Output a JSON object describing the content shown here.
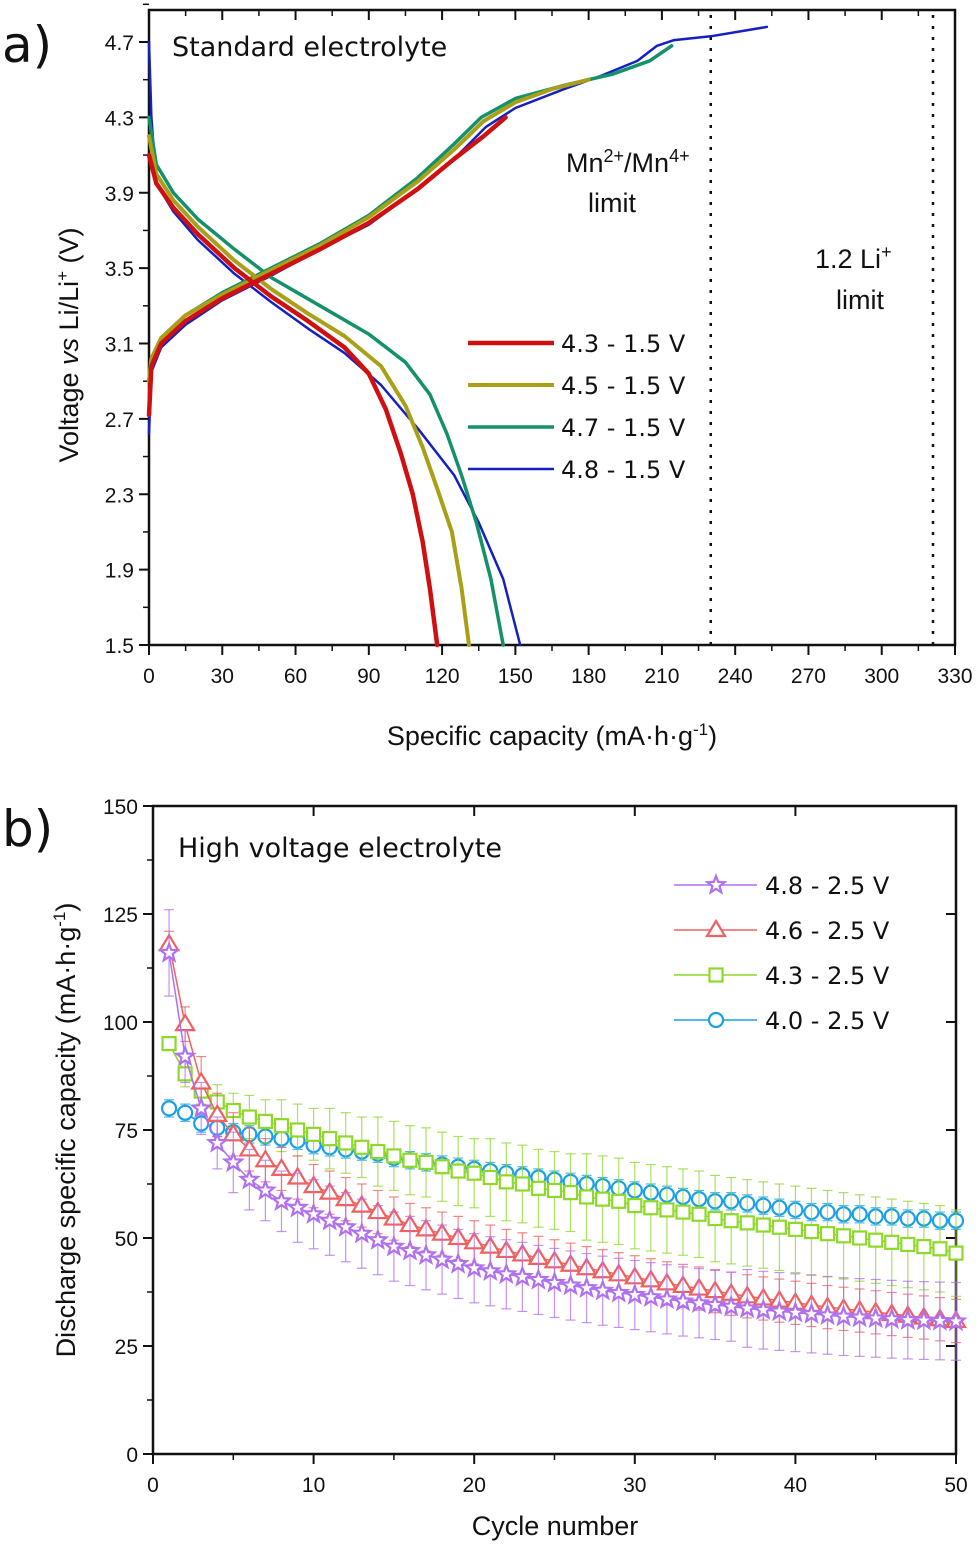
{
  "chart_data": [
    {
      "type": "line",
      "panel": "a)",
      "title": "Standard electrolyte",
      "xlabel": "Specific capacity (mA·h·g⁻¹)",
      "ylabel": "Voltage vs Li/Li⁺ (V)",
      "xlim": [
        0,
        330
      ],
      "ylim": [
        1.5,
        4.8
      ],
      "xticks": [
        0,
        30,
        60,
        90,
        120,
        150,
        180,
        210,
        240,
        270,
        300,
        330
      ],
      "yticks": [
        1.5,
        1.9,
        2.3,
        2.7,
        3.1,
        3.5,
        3.9,
        4.3,
        4.7
      ],
      "legend_position": "center-right",
      "annotations": [
        {
          "text": "Mn²⁺/Mn⁴⁺ limit",
          "x": 230
        },
        {
          "text": "1.2 Li⁺ limit",
          "x": 321
        }
      ],
      "series": [
        {
          "name": "4.3 - 1.5 V",
          "color": "#d01010",
          "charge": [
            [
              0,
              2.72
            ],
            [
              1,
              2.98
            ],
            [
              5,
              3.1
            ],
            [
              15,
              3.22
            ],
            [
              30,
              3.34
            ],
            [
              50,
              3.47
            ],
            [
              70,
              3.6
            ],
            [
              90,
              3.74
            ],
            [
              110,
              3.92
            ],
            [
              125,
              4.08
            ],
            [
              137,
              4.2
            ],
            [
              146,
              4.3
            ]
          ],
          "discharge": [
            [
              0,
              4.1
            ],
            [
              3,
              3.95
            ],
            [
              10,
              3.82
            ],
            [
              20,
              3.68
            ],
            [
              35,
              3.5
            ],
            [
              50,
              3.35
            ],
            [
              65,
              3.22
            ],
            [
              80,
              3.08
            ],
            [
              90,
              2.94
            ],
            [
              97,
              2.75
            ],
            [
              103,
              2.52
            ],
            [
              108,
              2.3
            ],
            [
              112,
              2.05
            ],
            [
              115,
              1.8
            ],
            [
              118,
              1.5
            ]
          ]
        },
        {
          "name": "4.5 - 1.5 V",
          "color": "#aaa018",
          "charge": [
            [
              0,
              2.9
            ],
            [
              1,
              3.02
            ],
            [
              5,
              3.13
            ],
            [
              15,
              3.25
            ],
            [
              30,
              3.36
            ],
            [
              50,
              3.49
            ],
            [
              70,
              3.62
            ],
            [
              90,
              3.77
            ],
            [
              110,
              3.96
            ],
            [
              125,
              4.13
            ],
            [
              137,
              4.28
            ],
            [
              150,
              4.38
            ],
            [
              165,
              4.45
            ],
            [
              180,
              4.5
            ]
          ],
          "discharge": [
            [
              0,
              4.2
            ],
            [
              3,
              4.0
            ],
            [
              10,
              3.86
            ],
            [
              20,
              3.72
            ],
            [
              35,
              3.54
            ],
            [
              50,
              3.39
            ],
            [
              65,
              3.26
            ],
            [
              80,
              3.14
            ],
            [
              95,
              2.98
            ],
            [
              105,
              2.77
            ],
            [
              112,
              2.55
            ],
            [
              118,
              2.33
            ],
            [
              124,
              2.1
            ],
            [
              128,
              1.8
            ],
            [
              131,
              1.5
            ]
          ]
        },
        {
          "name": "4.7 - 1.5 V",
          "color": "#14906a",
          "charge": [
            [
              0,
              2.9
            ],
            [
              1,
              3.02
            ],
            [
              5,
              3.13
            ],
            [
              15,
              3.25
            ],
            [
              30,
              3.37
            ],
            [
              50,
              3.5
            ],
            [
              70,
              3.63
            ],
            [
              90,
              3.78
            ],
            [
              110,
              3.98
            ],
            [
              125,
              4.16
            ],
            [
              136,
              4.3
            ],
            [
              150,
              4.4
            ],
            [
              170,
              4.47
            ],
            [
              190,
              4.53
            ],
            [
              205,
              4.6
            ],
            [
              214,
              4.68
            ]
          ],
          "discharge": [
            [
              0,
              4.3
            ],
            [
              3,
              4.05
            ],
            [
              10,
              3.9
            ],
            [
              20,
              3.76
            ],
            [
              35,
              3.6
            ],
            [
              50,
              3.45
            ],
            [
              70,
              3.3
            ],
            [
              90,
              3.15
            ],
            [
              105,
              3.0
            ],
            [
              115,
              2.83
            ],
            [
              122,
              2.62
            ],
            [
              128,
              2.4
            ],
            [
              134,
              2.15
            ],
            [
              140,
              1.85
            ],
            [
              145,
              1.5
            ]
          ]
        },
        {
          "name": "4.8 - 1.5 V",
          "color": "#1420c0",
          "charge": [
            [
              0,
              2.62
            ],
            [
              1,
              2.95
            ],
            [
              5,
              3.08
            ],
            [
              15,
              3.2
            ],
            [
              30,
              3.33
            ],
            [
              50,
              3.46
            ],
            [
              70,
              3.6
            ],
            [
              90,
              3.73
            ],
            [
              110,
              3.92
            ],
            [
              125,
              4.08
            ],
            [
              138,
              4.25
            ],
            [
              150,
              4.35
            ],
            [
              170,
              4.45
            ],
            [
              185,
              4.52
            ],
            [
              200,
              4.6
            ],
            [
              208,
              4.68
            ],
            [
              215,
              4.71
            ],
            [
              230,
              4.73
            ],
            [
              253,
              4.78
            ]
          ],
          "discharge": [
            [
              0,
              4.7
            ],
            [
              1,
              4.3
            ],
            [
              3,
              3.95
            ],
            [
              10,
              3.8
            ],
            [
              20,
              3.65
            ],
            [
              35,
              3.47
            ],
            [
              50,
              3.32
            ],
            [
              65,
              3.18
            ],
            [
              80,
              3.05
            ],
            [
              95,
              2.88
            ],
            [
              110,
              2.65
            ],
            [
              125,
              2.4
            ],
            [
              135,
              2.15
            ],
            [
              145,
              1.85
            ],
            [
              152,
              1.5
            ]
          ]
        }
      ]
    },
    {
      "type": "scatter",
      "panel": "b)",
      "title": "High voltage electrolyte",
      "xlabel": "Cycle number",
      "ylabel": "Discharge specific capacity (mA·h·g⁻¹)",
      "xlim": [
        0,
        50
      ],
      "ylim": [
        0,
        150
      ],
      "xticks": [
        0,
        10,
        20,
        30,
        40,
        50
      ],
      "yticks": [
        0,
        25,
        50,
        75,
        100,
        125,
        150
      ],
      "legend_position": "top-right",
      "series": [
        {
          "name": "4.8 - 2.5 V",
          "color": "#b070f0",
          "marker": "star",
          "values": [
            116,
            92,
            80,
            72,
            67.5,
            63.5,
            61,
            58.5,
            57,
            55.5,
            54,
            52.5,
            51,
            49.5,
            48,
            47,
            46,
            45,
            44,
            43,
            42.3,
            41.6,
            41,
            40.3,
            39.6,
            39,
            38.4,
            37.8,
            37.3,
            36.8,
            36.3,
            35.8,
            35.3,
            34.9,
            34.5,
            34.1,
            33.7,
            33.3,
            33,
            32.7,
            32.4,
            32.1,
            31.8,
            31.6,
            31.4,
            31.2,
            31,
            30.9,
            30.8,
            30.7
          ],
          "errors": [
            10,
            6,
            6,
            6,
            7,
            7,
            7,
            7,
            8,
            8,
            8,
            8,
            8,
            8,
            8,
            8,
            8,
            8,
            8,
            8,
            8,
            8,
            8,
            8,
            8,
            8,
            8,
            8,
            8,
            8,
            8,
            8,
            8,
            8,
            8,
            8,
            9,
            9,
            9,
            9,
            9,
            9,
            9,
            9,
            9,
            9,
            9,
            9,
            9,
            9
          ]
        },
        {
          "name": "4.6 - 2.5 V",
          "color": "#f06060",
          "marker": "triangle",
          "values": [
            118,
            99.5,
            86,
            78.5,
            74,
            70.5,
            68,
            66,
            64,
            62,
            60.5,
            59,
            57.5,
            56,
            54.5,
            53,
            52,
            51,
            50,
            49,
            48,
            47,
            46.2,
            45.4,
            44.6,
            43.8,
            43,
            42.3,
            41.6,
            40.9,
            40.2,
            39.5,
            38.9,
            38.3,
            37.7,
            37.1,
            36.5,
            36,
            35.5,
            35,
            34.5,
            34,
            33.6,
            33.2,
            32.8,
            32.4,
            32,
            31.6,
            31.2,
            30.8
          ],
          "errors": [
            3,
            4,
            6,
            5,
            5,
            5,
            5,
            5,
            5,
            5,
            5,
            5,
            5,
            5,
            5,
            5,
            5,
            5,
            5,
            5,
            5,
            5,
            5,
            5,
            5,
            5,
            5,
            5,
            5,
            5,
            5,
            5,
            5,
            5,
            5,
            5,
            5,
            5,
            5,
            5,
            5,
            5,
            5,
            5,
            5,
            5,
            5,
            5,
            5,
            5
          ]
        },
        {
          "name": "4.3 - 2.5 V",
          "color": "#8ed82a",
          "marker": "square",
          "values": [
            95,
            88,
            84,
            81.5,
            79.5,
            78,
            77,
            76,
            75,
            74,
            73,
            72,
            71,
            70,
            69,
            68,
            67.5,
            66.5,
            65.5,
            65,
            64,
            63,
            62.5,
            61.5,
            61,
            60.5,
            59.5,
            59,
            58.5,
            57.5,
            57,
            56.5,
            56,
            55.5,
            54.5,
            54,
            53.5,
            53,
            52.5,
            52,
            51.5,
            51,
            50.5,
            50,
            49.5,
            49,
            48.5,
            48,
            47.5,
            46.5
          ],
          "errors": [
            0,
            3,
            3,
            4,
            4,
            5,
            5,
            6,
            6,
            6,
            7,
            7,
            7,
            8,
            8,
            8,
            8,
            8,
            8,
            8,
            9,
            9,
            9,
            9,
            9,
            9,
            10,
            10,
            10,
            10,
            10,
            10,
            10,
            10,
            10,
            10,
            10,
            10,
            10,
            10,
            10,
            10,
            10,
            10,
            10,
            10,
            10,
            10,
            10,
            10
          ]
        },
        {
          "name": "4.0 - 2.5 V",
          "color": "#18a0e8",
          "marker": "circle",
          "values": [
            80,
            79,
            76.5,
            75.5,
            74.5,
            74,
            73.5,
            73,
            72.5,
            71.5,
            71,
            70.5,
            70,
            69.5,
            68.5,
            68,
            67.5,
            67,
            66.5,
            66,
            65.5,
            65,
            64.5,
            64,
            63.5,
            63,
            62.5,
            62,
            61.5,
            61,
            60.5,
            60,
            59.5,
            59,
            58.5,
            58.5,
            58,
            57.5,
            57,
            56.5,
            56,
            56,
            55.5,
            55.5,
            55,
            55,
            54.5,
            54.5,
            54,
            54
          ],
          "errors": [
            2,
            2,
            2,
            2,
            2,
            2,
            2,
            2,
            2,
            2,
            2,
            2,
            2,
            2,
            2,
            2,
            2,
            2,
            2,
            2,
            2,
            2,
            2,
            2,
            2,
            2,
            2,
            2,
            2,
            2,
            2,
            2,
            2,
            2,
            2,
            2,
            2,
            2,
            2,
            2,
            2,
            2,
            2,
            2,
            2,
            2,
            2,
            2,
            2,
            2
          ]
        }
      ]
    }
  ]
}
